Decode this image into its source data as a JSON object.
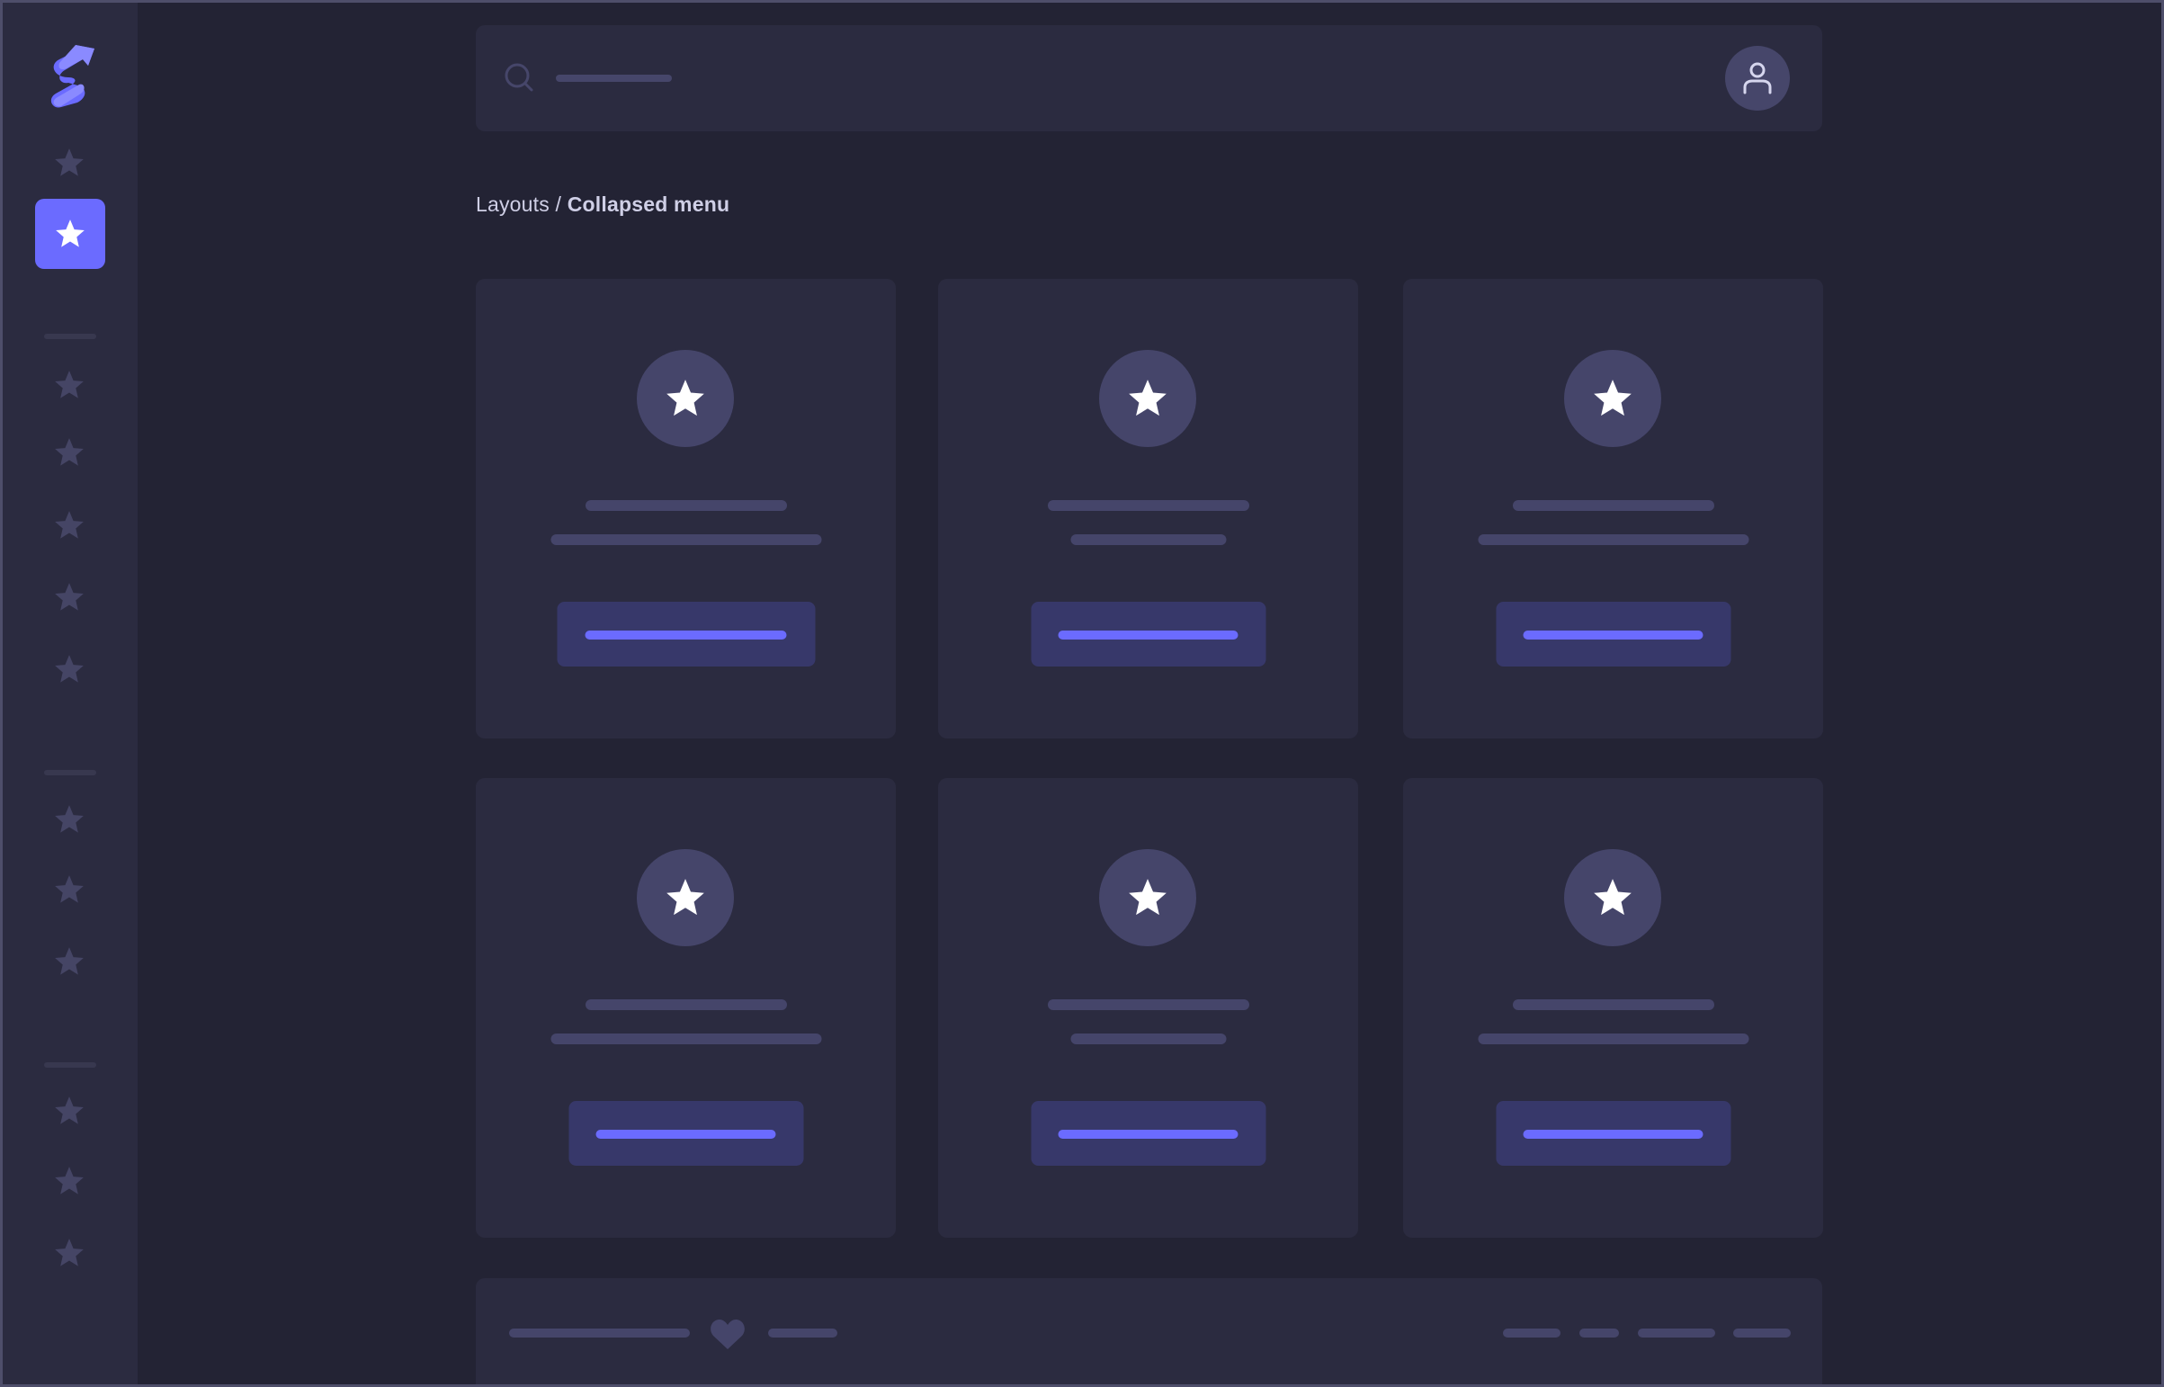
{
  "app": {
    "logo": "brand-logo-s-arrow"
  },
  "sidebar": {
    "active_index": 1,
    "item_icon": "star-icon"
  },
  "topbar": {
    "search_icon": "search-icon",
    "avatar_icon": "user-icon"
  },
  "breadcrumb": {
    "parent": "Layouts",
    "separator": " / ",
    "current": "Collapsed menu"
  },
  "cards": {
    "count": 6,
    "icon": "star-icon"
  },
  "footer": {
    "icon": "heart-icon"
  },
  "colors": {
    "background": "#232334",
    "panel": "#2b2b40",
    "accent": "#6b6bff",
    "skeleton": "#45456a",
    "button": "#37386a"
  }
}
